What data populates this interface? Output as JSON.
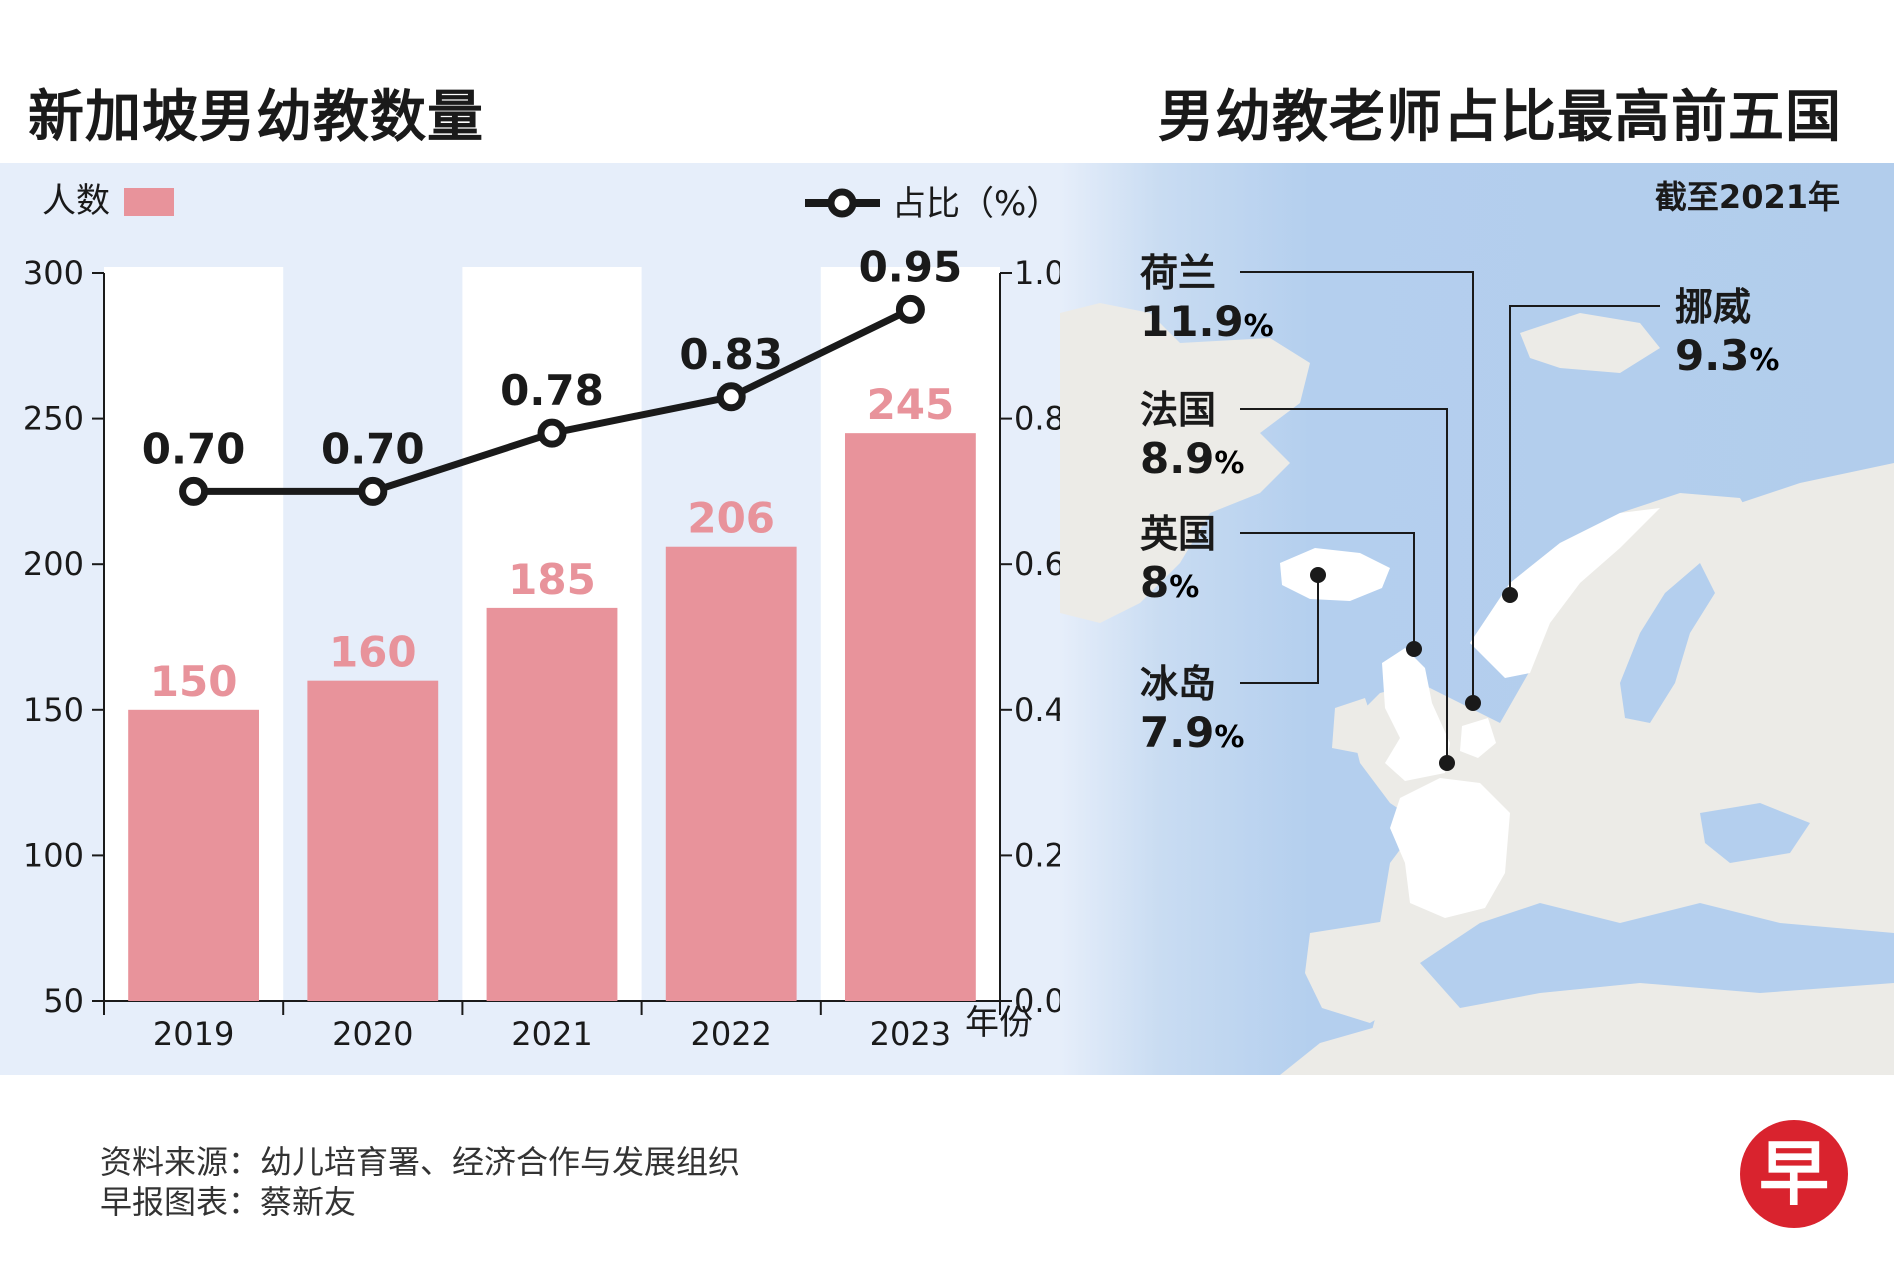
{
  "left_title": "新加坡男幼教数量",
  "right_title": "男幼教老师占比最高前五国",
  "chart_data": {
    "type": "bar",
    "categories": [
      "2019",
      "2020",
      "2021",
      "2022",
      "2023"
    ],
    "xlabel": "年份",
    "y_left_ticks": [
      "50",
      "100",
      "150",
      "200",
      "250",
      "300"
    ],
    "y_left_range": [
      50,
      300
    ],
    "y_right_ticks": [
      "0.0",
      "0.2",
      "0.4",
      "0.6",
      "0.8",
      "1.0"
    ],
    "y_right_range": [
      0,
      1.0
    ],
    "series": [
      {
        "name": "人数",
        "type": "bar",
        "axis": "left",
        "values": [
          150,
          160,
          185,
          206,
          245
        ],
        "labels": [
          "150",
          "160",
          "185",
          "206",
          "245"
        ]
      },
      {
        "name": "占比（%）",
        "type": "line",
        "axis": "right",
        "values": [
          0.7,
          0.7,
          0.78,
          0.83,
          0.95
        ],
        "labels": [
          "0.70",
          "0.70",
          "0.78",
          "0.83",
          "0.95"
        ]
      }
    ],
    "colors": {
      "bar": "#e8939b",
      "line": "#1a1a1a",
      "panel": "#e6eefa",
      "band": "#ffffff"
    }
  },
  "map": {
    "as_of": "截至2021年",
    "countries": [
      {
        "name": "荷兰",
        "value": "11.9",
        "unit": "%"
      },
      {
        "name": "挪威",
        "value": "9.3",
        "unit": "%"
      },
      {
        "name": "法国",
        "value": "8.9",
        "unit": "%"
      },
      {
        "name": "英国",
        "value": "8",
        "unit": "%"
      },
      {
        "name": "冰岛",
        "value": "7.9",
        "unit": "%"
      }
    ],
    "colors": {
      "sea": "#b4cfee",
      "land": "#ecebe7",
      "highlight": "#ffffff"
    }
  },
  "footer": {
    "source": "资料来源：幼儿培育署、经济合作与发展组织",
    "credit": "早报图表：蔡新友"
  },
  "logo_text": "早"
}
